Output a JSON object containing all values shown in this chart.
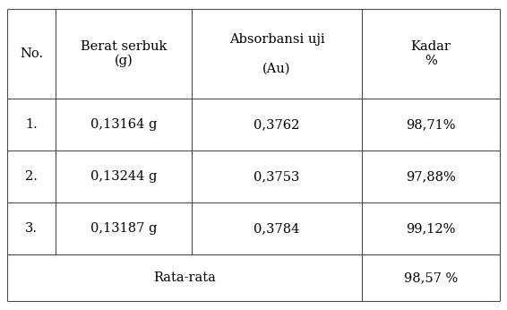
{
  "headers_col0": "No.",
  "headers_col1": "Berat serbuk\n(g)",
  "headers_col2": "Absorbansi uji\n\n(Au)",
  "headers_col3": "Kadar\n%",
  "rows": [
    [
      "1.",
      "0,13164 g",
      "0,3762",
      "98,71%"
    ],
    [
      "2.",
      "0,13244 g",
      "0,3753",
      "97,88%"
    ],
    [
      "3.",
      "0,13187 g",
      "0,3784",
      "99,12%"
    ]
  ],
  "rata_label": "Rata-rata",
  "rata_value": "98,57 %",
  "bg_color": "#ffffff",
  "line_color": "#4a4a4a",
  "text_color": "#000000",
  "font_size": 10.5
}
